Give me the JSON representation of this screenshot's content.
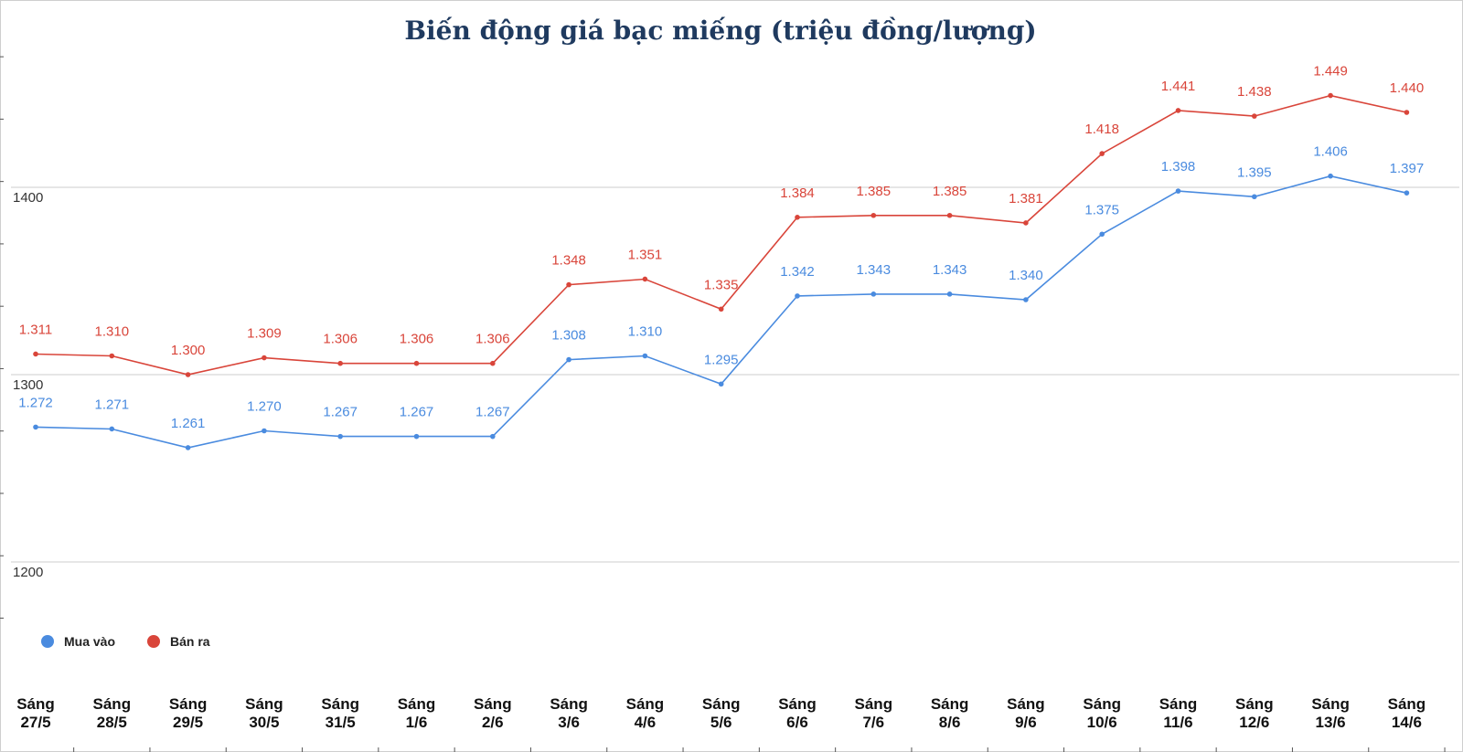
{
  "chart_data": {
    "type": "line",
    "title": "Biến động giá bạc miếng (triệu đồng/lượng)",
    "xlabel": "",
    "ylabel": "",
    "ylim": [
      1165,
      1505
    ],
    "y_ticks": [
      1200,
      1300,
      1400
    ],
    "grid": true,
    "legend": "bottom-left",
    "categories": [
      [
        "Sáng",
        "27/5"
      ],
      [
        "Sáng",
        "28/5"
      ],
      [
        "Sáng",
        "29/5"
      ],
      [
        "Sáng",
        "30/5"
      ],
      [
        "Sáng",
        "31/5"
      ],
      [
        "Sáng",
        "1/6"
      ],
      [
        "Sáng",
        "2/6"
      ],
      [
        "Sáng",
        "3/6"
      ],
      [
        "Sáng",
        "4/6"
      ],
      [
        "Sáng",
        "5/6"
      ],
      [
        "Sáng",
        "6/6"
      ],
      [
        "Sáng",
        "7/6"
      ],
      [
        "Sáng",
        "8/6"
      ],
      [
        "Sáng",
        "9/6"
      ],
      [
        "Sáng",
        "10/6"
      ],
      [
        "Sáng",
        "11/6"
      ],
      [
        "Sáng",
        "12/6"
      ],
      [
        "Sáng",
        "13/6"
      ],
      [
        "Sáng",
        "14/6"
      ]
    ],
    "series": [
      {
        "name": "Mua vào",
        "color": "#4a8bdf",
        "values": [
          1272,
          1271,
          1261,
          1270,
          1267,
          1267,
          1267,
          1308,
          1310,
          1295,
          1342,
          1343,
          1343,
          1340,
          1375,
          1398,
          1395,
          1406,
          1397
        ],
        "labels": [
          "1.272",
          "1.271",
          "1.261",
          "1.270",
          "1.267",
          "1.267",
          "1.267",
          "1.308",
          "1.310",
          "1.295",
          "1.342",
          "1.343",
          "1.343",
          "1.340",
          "1.375",
          "1.398",
          "1.395",
          "1.406",
          "1.397"
        ]
      },
      {
        "name": "Bán ra",
        "color": "#d9453a",
        "values": [
          1311,
          1310,
          1300,
          1309,
          1306,
          1306,
          1306,
          1348,
          1351,
          1335,
          1384,
          1385,
          1385,
          1381,
          1418,
          1441,
          1438,
          1449,
          1440
        ],
        "labels": [
          "1.311",
          "1.310",
          "1.300",
          "1.309",
          "1.306",
          "1.306",
          "1.306",
          "1.348",
          "1.351",
          "1.335",
          "1.384",
          "1.385",
          "1.385",
          "1.381",
          "1.418",
          "1.441",
          "1.438",
          "1.449",
          "1.440"
        ]
      }
    ]
  }
}
